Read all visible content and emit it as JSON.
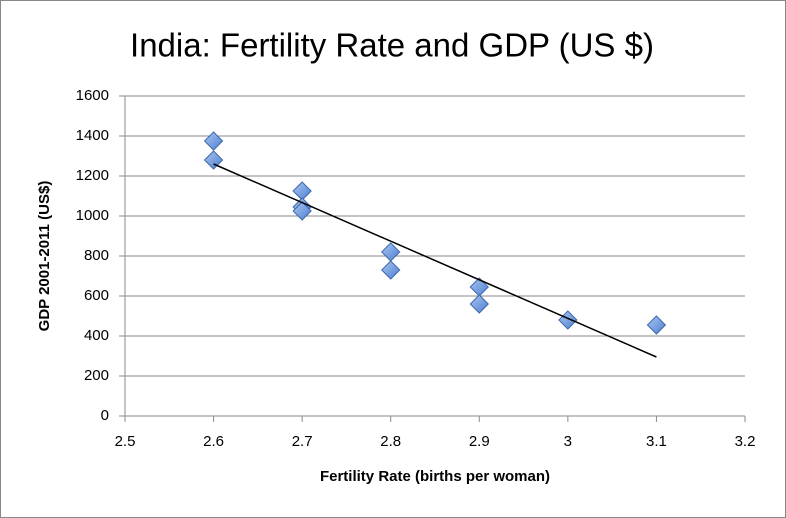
{
  "chart_data": {
    "type": "scatter",
    "title": "India: Fertility Rate and GDP (US $)",
    "x_label": "Fertility Rate (births per woman)",
    "y_label": "GDP 2001-2011 (US$)",
    "series": [
      {
        "color": "#6b9be0",
        "x": [
          2.6,
          2.6,
          2.7,
          2.7,
          2.7,
          2.8,
          2.8,
          2.9,
          2.9,
          3.0,
          3.1
        ],
        "values": [
          1375,
          1280,
          1125,
          1045,
          1025,
          820,
          730,
          645,
          560,
          480,
          455
        ]
      }
    ],
    "trendline": {
      "color": "#000000",
      "x": [
        2.6,
        3.1
      ],
      "values": [
        1260,
        295
      ]
    },
    "xlim": [
      2.5,
      3.2
    ],
    "xticks": [
      2.5,
      2.6,
      2.7,
      2.8,
      2.9,
      3,
      3.1,
      3.2
    ],
    "ylim": [
      0,
      1600
    ],
    "yticks": [
      0,
      200,
      400,
      600,
      800,
      1000,
      1200,
      1400,
      1600
    ],
    "grid": true
  }
}
